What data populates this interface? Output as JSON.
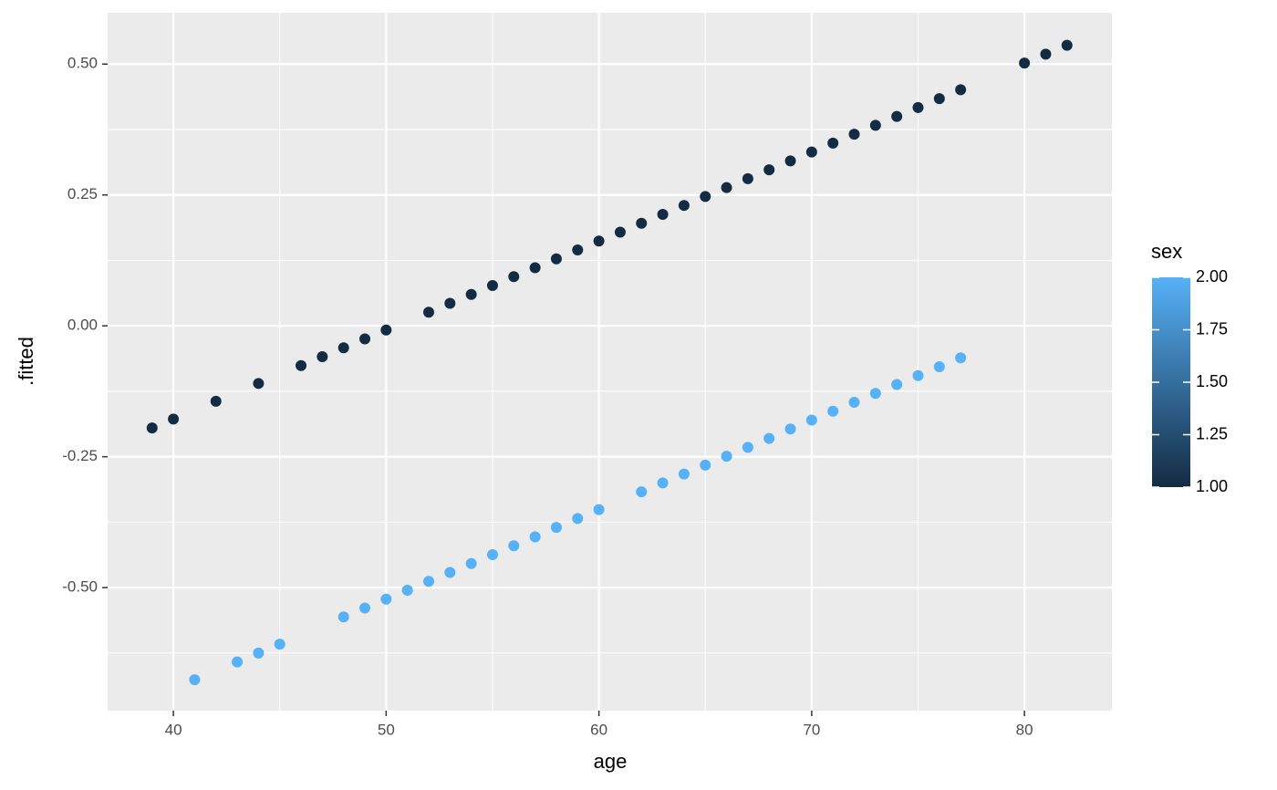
{
  "chart_data": {
    "type": "scatter",
    "x_label": "age",
    "y_label": ".fitted",
    "xlim": [
      36.91,
      84.11
    ],
    "ylim": [
      -0.735,
      0.598
    ],
    "xticks": [
      40,
      50,
      60,
      70,
      80
    ],
    "yticks": [
      {
        "value": 0.5,
        "label": "0.50"
      },
      {
        "value": 0.25,
        "label": "0.25"
      },
      {
        "value": 0,
        "label": "0.00"
      },
      {
        "value": -0.25,
        "label": "-0.25"
      },
      {
        "value": -0.5,
        "label": "-0.50"
      }
    ],
    "x_minor_grid": [
      45,
      55,
      65,
      75
    ],
    "y_minor_grid": [
      0.375,
      0.125,
      -0.125,
      -0.375,
      -0.625
    ],
    "grid": true,
    "series": [
      {
        "color": "#132B43",
        "x": [
          39,
          40,
          42,
          44,
          46,
          47,
          48,
          49,
          50,
          52,
          53,
          54,
          55,
          56,
          57,
          58,
          59,
          60,
          61,
          62,
          63,
          64,
          65,
          66,
          67,
          68,
          69,
          70,
          71,
          72,
          73,
          74,
          75,
          76,
          77,
          80,
          81,
          82
        ],
        "values": [
          -0.195,
          -0.178,
          -0.144,
          -0.11,
          -0.076,
          -0.059,
          -0.042,
          -0.025,
          -0.008,
          0.026,
          0.043,
          0.06,
          0.077,
          0.094,
          0.111,
          0.128,
          0.145,
          0.162,
          0.179,
          0.196,
          0.213,
          0.23,
          0.247,
          0.264,
          0.281,
          0.298,
          0.315,
          0.332,
          0.349,
          0.366,
          0.383,
          0.4,
          0.417,
          0.434,
          0.451,
          0.502,
          0.519,
          0.536
        ]
      },
      {
        "color": "#56B1F7",
        "x": [
          41,
          43,
          44,
          45,
          48,
          49,
          50,
          51,
          52,
          53,
          54,
          55,
          56,
          57,
          58,
          59,
          60,
          62,
          63,
          64,
          65,
          66,
          67,
          68,
          69,
          70,
          71,
          72,
          73,
          74,
          75,
          76,
          77
        ],
        "values": [
          -0.676,
          -0.642,
          -0.625,
          -0.608,
          -0.556,
          -0.539,
          -0.522,
          -0.505,
          -0.488,
          -0.471,
          -0.454,
          -0.437,
          -0.42,
          -0.403,
          -0.385,
          -0.368,
          -0.351,
          -0.317,
          -0.3,
          -0.283,
          -0.266,
          -0.249,
          -0.232,
          -0.215,
          -0.197,
          -0.18,
          -0.163,
          -0.146,
          -0.129,
          -0.112,
          -0.095,
          -0.078,
          -0.061
        ]
      }
    ],
    "colorbar": {
      "title": "sex",
      "low": "#132B43",
      "high": "#56B1F7",
      "lim": [
        1,
        2
      ],
      "ticks": [
        {
          "value": 1,
          "label": "1.00"
        },
        {
          "value": 1.25,
          "label": "1.25"
        },
        {
          "value": 1.5,
          "label": "1.50"
        },
        {
          "value": 1.75,
          "label": "1.75"
        },
        {
          "value": 2,
          "label": "2.00"
        }
      ]
    }
  }
}
